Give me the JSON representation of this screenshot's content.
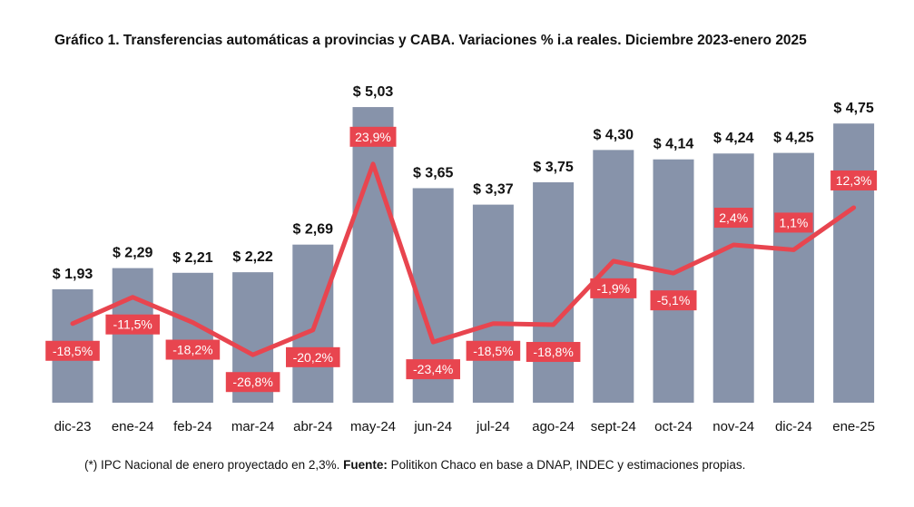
{
  "chart_data": {
    "type": "bar",
    "title": "Gráfico 1. Transferencias automáticas a provincias y CABA. Variaciones % i.a reales. Diciembre 2023-enero 2025",
    "categories": [
      "dic-23",
      "ene-24",
      "feb-24",
      "mar-24",
      "abr-24",
      "may-24",
      "jun-24",
      "jul-24",
      "ago-24",
      "sept-24",
      "oct-24",
      "nov-24",
      "dic-24",
      "ene-25"
    ],
    "series": [
      {
        "type": "bar",
        "values": [
          1.93,
          2.29,
          2.21,
          2.22,
          2.69,
          5.03,
          3.65,
          3.37,
          3.75,
          4.3,
          4.14,
          4.24,
          4.25,
          4.75
        ],
        "labels": [
          "$ 1,93",
          "$ 2,29",
          "$ 2,21",
          "$ 2,22",
          "$ 2,69",
          "$ 5,03",
          "$ 3,65",
          "$ 3,37",
          "$ 3,75",
          "$ 4,30",
          "$ 4,14",
          "$ 4,24",
          "$ 4,25",
          "$ 4,75"
        ],
        "color": "#8793aa"
      },
      {
        "type": "line",
        "values": [
          -18.5,
          -11.5,
          -18.2,
          -26.8,
          -20.2,
          23.9,
          -23.4,
          -18.5,
          -18.8,
          -1.9,
          -5.1,
          2.4,
          1.1,
          12.3
        ],
        "labels": [
          "-18,5%",
          "-11,5%",
          "-18,2%",
          "-26,8%",
          "-20,2%",
          "23,9%",
          "-23,4%",
          "-18,5%",
          "-18,8%",
          "-1,9%",
          "-5,1%",
          "2,4%",
          "1,1%",
          "12,3%"
        ],
        "color": "#e8454f"
      }
    ],
    "legend": "none",
    "grid": false
  },
  "footnote": {
    "prefix": "(*) IPC Nacional de enero proyectado en 2,3%. ",
    "source_label": "Fuente:",
    "source_text": " Politikon Chaco en base a DNAP, INDEC y estimaciones propias."
  }
}
